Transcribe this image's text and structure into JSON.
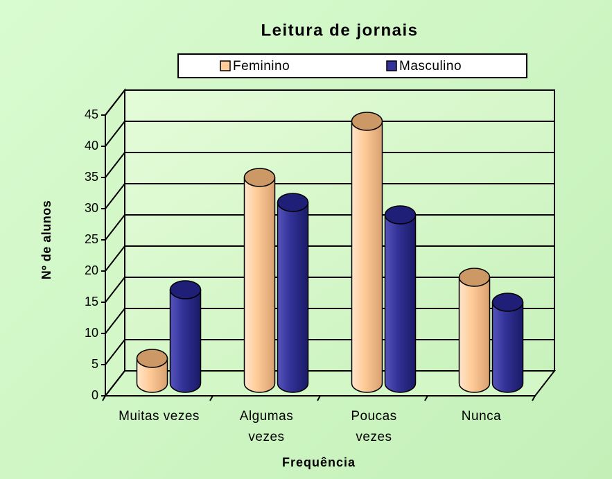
{
  "chart_data": {
    "type": "bar3d",
    "title": "Leitura de jornais",
    "x_label": "Frequência",
    "y_label": "Nº de alunos",
    "categories": [
      "Muitas vezes",
      "Algumas vezes",
      "Poucas vezes",
      "Nunca"
    ],
    "series": [
      {
        "name": "Feminino",
        "color": "#ffcc99",
        "values": [
          4,
          33,
          42,
          17
        ]
      },
      {
        "name": "Masculino",
        "color": "#333399",
        "values": [
          15,
          29,
          27,
          13
        ]
      }
    ],
    "ylim": [
      0,
      45
    ],
    "yticks": [
      0,
      5,
      10,
      15,
      20,
      25,
      30,
      35,
      40,
      45
    ],
    "grid": true,
    "legend": "top"
  }
}
